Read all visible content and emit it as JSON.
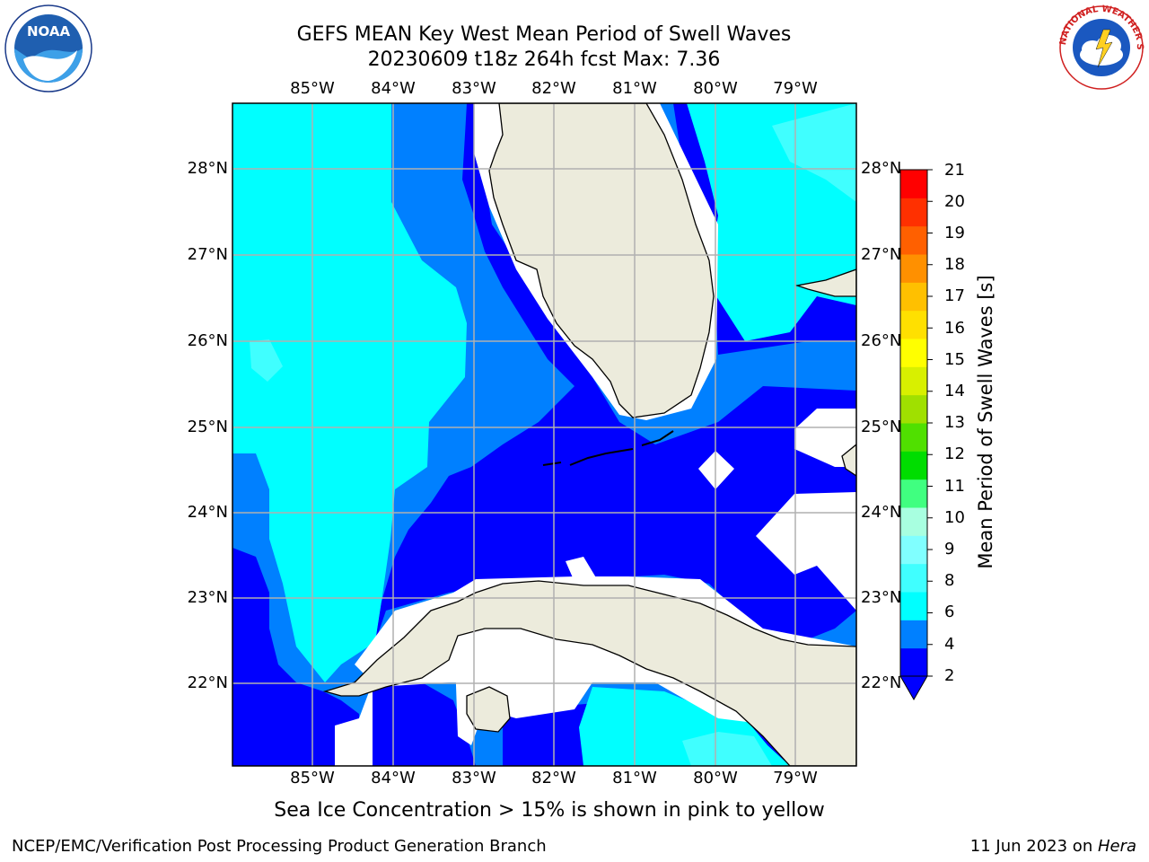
{
  "title": {
    "line1": "GEFS MEAN Key West Mean Period of Swell Waves",
    "line2": "20230609 t18z 264h fcst   Max: 7.36"
  },
  "map": {
    "lon_labels": [
      "85°W",
      "84°W",
      "83°W",
      "82°W",
      "81°W",
      "80°W",
      "79°W"
    ],
    "lat_labels": [
      "28°N",
      "27°N",
      "26°N",
      "25°N",
      "24°N",
      "23°N",
      "22°N"
    ],
    "land_color": "#ecebdc",
    "grid_color": "#b0b0b0"
  },
  "colorbar": {
    "title": "Mean Period of Swell Waves [s]",
    "ticks": [
      "21",
      "20",
      "19",
      "18",
      "17",
      "16",
      "15",
      "14",
      "13",
      "12",
      "11",
      "10",
      "9",
      "8",
      "6",
      "4",
      "2"
    ],
    "colors_bottom_to_top": [
      "#0000ff",
      "#0080ff",
      "#00ffff",
      "#40ffff",
      "#80ffff",
      "#a8ffe0",
      "#40ff80",
      "#00dd00",
      "#50e000",
      "#a0e000",
      "#d8f000",
      "#ffff00",
      "#ffe000",
      "#ffc000",
      "#ff9000",
      "#ff6000",
      "#ff3000",
      "#ff0000"
    ],
    "extend": "min"
  },
  "notes": {
    "ice": "Sea Ice Concentration > 15% is shown in pink to yellow"
  },
  "footer": {
    "left": "NCEP/EMC/Verification Post Processing Product Generation Branch",
    "date": "11 Jun 2023 on ",
    "host": "Hera"
  },
  "logos": {
    "noaa_text": "NOAA",
    "nws_text": "NATIONAL WEATHER SERVICE"
  }
}
